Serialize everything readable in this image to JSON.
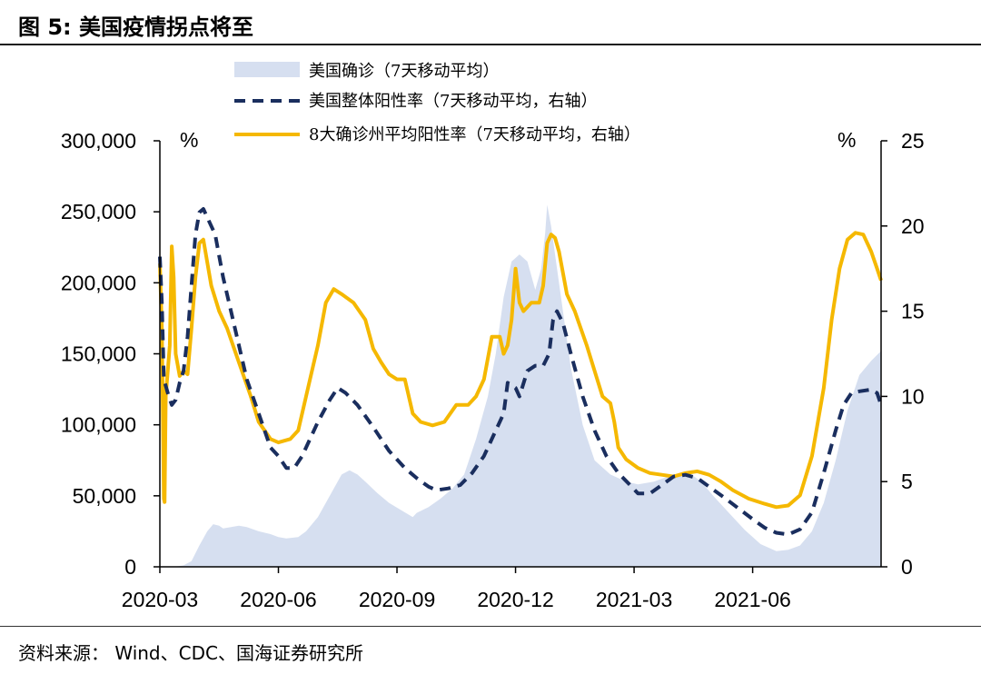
{
  "title": "图 5:  美国疫情拐点将至",
  "source": "资料来源：   Wind、CDC、国海证券研究所",
  "colors": {
    "cases": "#d6dff0",
    "positivity_us": "#1a2e5e",
    "positivity_8states": "#f5b800",
    "axis": "#000000"
  },
  "chart_data": {
    "type": "area+line",
    "left_unit": "%",
    "right_unit": "%",
    "left_axis": {
      "ylim": [
        0,
        300000
      ],
      "ticks": [
        "0",
        "50,000",
        "100,000",
        "150,000",
        "200,000",
        "250,000",
        "300,000"
      ],
      "tick_values": [
        0,
        50000,
        100000,
        150000,
        200000,
        250000,
        300000
      ]
    },
    "right_axis": {
      "ylim": [
        0,
        25
      ],
      "ticks": [
        "0",
        "5",
        "10",
        "15",
        "20",
        "25"
      ],
      "tick_values": [
        0,
        5,
        10,
        15,
        20,
        25
      ]
    },
    "x_ticks": [
      "2020-03",
      "2020-06",
      "2020-09",
      "2020-12",
      "2021-03",
      "2021-06"
    ],
    "x_tick_months": [
      0,
      3,
      6,
      9,
      12,
      15
    ],
    "x_range_months": [
      0,
      18.25
    ],
    "series": [
      {
        "name": "美国确诊（7天移动平均）",
        "kind": "area",
        "axis": "left",
        "points": [
          [
            0,
            0
          ],
          [
            0.4,
            200
          ],
          [
            0.6,
            1000
          ],
          [
            0.8,
            4000
          ],
          [
            1.0,
            15000
          ],
          [
            1.2,
            25000
          ],
          [
            1.35,
            30000
          ],
          [
            1.5,
            29000
          ],
          [
            1.6,
            27000
          ],
          [
            1.8,
            28000
          ],
          [
            2.0,
            29000
          ],
          [
            2.2,
            28000
          ],
          [
            2.5,
            25000
          ],
          [
            2.8,
            23000
          ],
          [
            3.0,
            21000
          ],
          [
            3.2,
            20000
          ],
          [
            3.5,
            21000
          ],
          [
            3.7,
            25000
          ],
          [
            4.0,
            35000
          ],
          [
            4.2,
            45000
          ],
          [
            4.4,
            55000
          ],
          [
            4.6,
            65000
          ],
          [
            4.8,
            68000
          ],
          [
            5.0,
            65000
          ],
          [
            5.2,
            60000
          ],
          [
            5.5,
            52000
          ],
          [
            5.8,
            45000
          ],
          [
            6.1,
            40000
          ],
          [
            6.4,
            35000
          ],
          [
            6.5,
            38000
          ],
          [
            6.8,
            42000
          ],
          [
            7.1,
            48000
          ],
          [
            7.4,
            55000
          ],
          [
            7.7,
            65000
          ],
          [
            8.0,
            90000
          ],
          [
            8.3,
            120000
          ],
          [
            8.5,
            150000
          ],
          [
            8.7,
            190000
          ],
          [
            8.9,
            215000
          ],
          [
            9.1,
            220000
          ],
          [
            9.3,
            215000
          ],
          [
            9.5,
            195000
          ],
          [
            9.65,
            210000
          ],
          [
            9.75,
            235000
          ],
          [
            9.8,
            255000
          ],
          [
            9.9,
            240000
          ],
          [
            10.1,
            200000
          ],
          [
            10.4,
            140000
          ],
          [
            10.7,
            100000
          ],
          [
            11.0,
            75000
          ],
          [
            11.4,
            65000
          ],
          [
            11.8,
            60000
          ],
          [
            12.1,
            58000
          ],
          [
            12.5,
            60000
          ],
          [
            13.0,
            65000
          ],
          [
            13.4,
            66000
          ],
          [
            13.7,
            60000
          ],
          [
            14.0,
            50000
          ],
          [
            14.4,
            38000
          ],
          [
            14.8,
            26000
          ],
          [
            15.2,
            16000
          ],
          [
            15.6,
            11000
          ],
          [
            15.9,
            12000
          ],
          [
            16.2,
            15000
          ],
          [
            16.5,
            25000
          ],
          [
            16.8,
            45000
          ],
          [
            17.1,
            75000
          ],
          [
            17.4,
            110000
          ],
          [
            17.7,
            135000
          ],
          [
            18.0,
            145000
          ],
          [
            18.25,
            152000
          ]
        ]
      },
      {
        "name": "美国整体阳性率（7天移动平均，右轴）",
        "kind": "dashed-line",
        "axis": "right",
        "points": [
          [
            0,
            18.2
          ],
          [
            0.05,
            15.5
          ],
          [
            0.1,
            11.0
          ],
          [
            0.2,
            10.2
          ],
          [
            0.3,
            9.5
          ],
          [
            0.4,
            9.8
          ],
          [
            0.5,
            10.8
          ],
          [
            0.6,
            11.5
          ],
          [
            0.7,
            13.5
          ],
          [
            0.8,
            16.5
          ],
          [
            0.9,
            19.5
          ],
          [
            1.0,
            20.8
          ],
          [
            1.1,
            21.0
          ],
          [
            1.2,
            20.5
          ],
          [
            1.4,
            19.5
          ],
          [
            1.6,
            17.0
          ],
          [
            1.8,
            15.0
          ],
          [
            2.0,
            13.0
          ],
          [
            2.2,
            11.0
          ],
          [
            2.5,
            9.0
          ],
          [
            2.8,
            7.0
          ],
          [
            3.0,
            6.5
          ],
          [
            3.2,
            5.8
          ],
          [
            3.4,
            5.8
          ],
          [
            3.6,
            6.5
          ],
          [
            3.8,
            7.5
          ],
          [
            4.0,
            8.5
          ],
          [
            4.3,
            9.8
          ],
          [
            4.5,
            10.5
          ],
          [
            4.7,
            10.2
          ],
          [
            5.0,
            9.5
          ],
          [
            5.4,
            8.2
          ],
          [
            5.8,
            6.8
          ],
          [
            6.2,
            5.8
          ],
          [
            6.5,
            5.2
          ],
          [
            6.8,
            4.7
          ],
          [
            7.0,
            4.5
          ],
          [
            7.3,
            4.6
          ],
          [
            7.6,
            4.8
          ],
          [
            7.9,
            5.5
          ],
          [
            8.2,
            6.5
          ],
          [
            8.5,
            8.0
          ],
          [
            8.7,
            9.0
          ],
          [
            8.8,
            10.8
          ],
          [
            9.0,
            10.5
          ],
          [
            9.1,
            10.0
          ],
          [
            9.3,
            11.5
          ],
          [
            9.5,
            11.8
          ],
          [
            9.7,
            11.8
          ],
          [
            9.85,
            12.5
          ],
          [
            9.95,
            14.5
          ],
          [
            10.05,
            15.0
          ],
          [
            10.2,
            14.3
          ],
          [
            10.4,
            12.5
          ],
          [
            10.7,
            10.0
          ],
          [
            11.0,
            8.0
          ],
          [
            11.3,
            6.5
          ],
          [
            11.6,
            5.5
          ],
          [
            11.9,
            4.8
          ],
          [
            12.1,
            4.3
          ],
          [
            12.4,
            4.3
          ],
          [
            12.7,
            4.8
          ],
          [
            13.0,
            5.3
          ],
          [
            13.3,
            5.4
          ],
          [
            13.6,
            5.2
          ],
          [
            13.9,
            4.7
          ],
          [
            14.2,
            4.2
          ],
          [
            14.6,
            3.5
          ],
          [
            15.0,
            2.8
          ],
          [
            15.3,
            2.3
          ],
          [
            15.6,
            2.0
          ],
          [
            15.9,
            1.9
          ],
          [
            16.2,
            2.2
          ],
          [
            16.5,
            3.2
          ],
          [
            16.8,
            5.5
          ],
          [
            17.1,
            8.0
          ],
          [
            17.3,
            9.5
          ],
          [
            17.5,
            10.2
          ],
          [
            17.7,
            10.3
          ],
          [
            18.0,
            10.4
          ],
          [
            18.15,
            10.2
          ],
          [
            18.25,
            9.5
          ]
        ]
      },
      {
        "name": "8大确诊州平均阳性率（7天移动平均，右轴）",
        "kind": "line",
        "axis": "right",
        "points": [
          [
            0,
            17.8
          ],
          [
            0.05,
            14.0
          ],
          [
            0.1,
            4.0
          ],
          [
            0.12,
            3.8
          ],
          [
            0.15,
            10.0
          ],
          [
            0.2,
            11.5
          ],
          [
            0.25,
            13.0
          ],
          [
            0.3,
            18.8
          ],
          [
            0.35,
            17.0
          ],
          [
            0.4,
            12.5
          ],
          [
            0.5,
            11.2
          ],
          [
            0.6,
            11.5
          ],
          [
            0.7,
            11.3
          ],
          [
            0.8,
            14.0
          ],
          [
            0.9,
            17.0
          ],
          [
            1.0,
            19.0
          ],
          [
            1.1,
            19.2
          ],
          [
            1.3,
            16.5
          ],
          [
            1.5,
            15.0
          ],
          [
            1.7,
            14.0
          ],
          [
            2.0,
            12.0
          ],
          [
            2.3,
            10.0
          ],
          [
            2.5,
            8.5
          ],
          [
            2.8,
            7.5
          ],
          [
            3.0,
            7.3
          ],
          [
            3.3,
            7.5
          ],
          [
            3.5,
            8.0
          ],
          [
            3.8,
            11.0
          ],
          [
            4.0,
            13.0
          ],
          [
            4.2,
            15.5
          ],
          [
            4.4,
            16.3
          ],
          [
            4.6,
            16.0
          ],
          [
            4.9,
            15.5
          ],
          [
            5.2,
            14.5
          ],
          [
            5.4,
            12.8
          ],
          [
            5.6,
            12.0
          ],
          [
            5.8,
            11.3
          ],
          [
            6.0,
            11.0
          ],
          [
            6.2,
            11.0
          ],
          [
            6.4,
            9.0
          ],
          [
            6.6,
            8.5
          ],
          [
            6.9,
            8.3
          ],
          [
            7.2,
            8.5
          ],
          [
            7.5,
            9.5
          ],
          [
            7.8,
            9.5
          ],
          [
            8.0,
            10.0
          ],
          [
            8.2,
            11.0
          ],
          [
            8.4,
            13.5
          ],
          [
            8.6,
            13.5
          ],
          [
            8.7,
            12.5
          ],
          [
            8.8,
            13.0
          ],
          [
            8.9,
            14.5
          ],
          [
            9.0,
            17.5
          ],
          [
            9.1,
            15.5
          ],
          [
            9.2,
            15.0
          ],
          [
            9.4,
            15.5
          ],
          [
            9.6,
            15.5
          ],
          [
            9.7,
            16.5
          ],
          [
            9.8,
            19.0
          ],
          [
            9.9,
            19.5
          ],
          [
            10.0,
            19.3
          ],
          [
            10.1,
            18.5
          ],
          [
            10.3,
            16.0
          ],
          [
            10.5,
            15.0
          ],
          [
            10.8,
            13.0
          ],
          [
            11.0,
            11.5
          ],
          [
            11.2,
            10.0
          ],
          [
            11.4,
            9.6
          ],
          [
            11.5,
            8.5
          ],
          [
            11.6,
            7.0
          ],
          [
            11.8,
            6.3
          ],
          [
            12.1,
            5.8
          ],
          [
            12.4,
            5.5
          ],
          [
            12.7,
            5.4
          ],
          [
            13.0,
            5.3
          ],
          [
            13.3,
            5.5
          ],
          [
            13.6,
            5.6
          ],
          [
            13.9,
            5.4
          ],
          [
            14.2,
            5.0
          ],
          [
            14.5,
            4.5
          ],
          [
            14.9,
            4.0
          ],
          [
            15.3,
            3.7
          ],
          [
            15.6,
            3.5
          ],
          [
            15.9,
            3.6
          ],
          [
            16.2,
            4.2
          ],
          [
            16.5,
            6.5
          ],
          [
            16.8,
            10.5
          ],
          [
            17.0,
            14.5
          ],
          [
            17.2,
            17.5
          ],
          [
            17.4,
            19.2
          ],
          [
            17.6,
            19.6
          ],
          [
            17.8,
            19.5
          ],
          [
            18.0,
            18.5
          ],
          [
            18.15,
            17.5
          ],
          [
            18.25,
            16.8
          ]
        ]
      }
    ]
  }
}
